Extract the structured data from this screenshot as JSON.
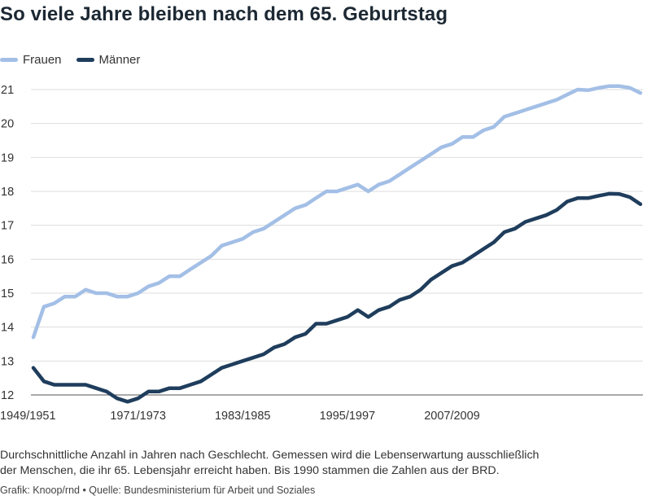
{
  "title": "So viele Jahre bleiben nach dem 65. Geburtstag",
  "legend": [
    {
      "label": "Frauen",
      "color": "#a3bfe6"
    },
    {
      "label": "Männer",
      "color": "#1f3d5c"
    }
  ],
  "description_line1": "Durchschnittliche Anzahl in Jahren nach Geschlecht. Gemessen wird die Lebenserwartung ausschließlich",
  "description_line2": "der Menschen, die ihr 65. Lebensjahr erreicht haben. Bis 1990 stammen die Zahlen aus der BRD.",
  "credit": "Grafik: Knoop/rnd • Quelle: Bundesministerium für Arbeit und Soziales",
  "chart_data": {
    "type": "line",
    "title": "So viele Jahre bleiben nach dem 65. Geburtstag",
    "xlabel": "",
    "ylabel": "",
    "ylim": [
      12,
      21
    ],
    "y_ticks": [
      12,
      13,
      14,
      15,
      16,
      17,
      18,
      19,
      20,
      21
    ],
    "x_tick_labels": [
      {
        "label": "1949/1951",
        "index": 0
      },
      {
        "label": "1971/1973",
        "index": 10
      },
      {
        "label": "1983/1985",
        "index": 20
      },
      {
        "label": "1995/1997",
        "index": 30
      },
      {
        "label": "2007/2009",
        "index": 40
      }
    ],
    "grid": "horizontal",
    "legend_position": "top-left",
    "series": [
      {
        "name": "Frauen",
        "color": "#a3bfe6",
        "values": [
          13.7,
          14.6,
          14.7,
          14.9,
          14.9,
          15.1,
          15.0,
          15.0,
          14.9,
          14.9,
          15.0,
          15.2,
          15.3,
          15.5,
          15.5,
          15.7,
          15.9,
          16.1,
          16.4,
          16.5,
          16.6,
          16.8,
          16.9,
          17.1,
          17.3,
          17.5,
          17.6,
          17.8,
          18.0,
          18.0,
          18.1,
          18.2,
          18.0,
          18.2,
          18.3,
          18.5,
          18.7,
          18.9,
          19.1,
          19.3,
          19.4,
          19.6,
          19.6,
          19.8,
          19.9,
          20.2,
          20.3,
          20.4,
          20.5,
          20.6,
          20.7,
          20.85,
          21.0,
          20.98,
          21.05,
          21.1,
          21.1,
          21.05,
          20.9
        ]
      },
      {
        "name": "Männer",
        "color": "#1f3d5c",
        "values": [
          12.8,
          12.4,
          12.3,
          12.3,
          12.3,
          12.3,
          12.2,
          12.1,
          11.9,
          11.8,
          11.9,
          12.1,
          12.1,
          12.2,
          12.2,
          12.3,
          12.4,
          12.6,
          12.8,
          12.9,
          13.0,
          13.1,
          13.2,
          13.4,
          13.5,
          13.7,
          13.8,
          14.1,
          14.1,
          14.2,
          14.3,
          14.5,
          14.3,
          14.5,
          14.6,
          14.8,
          14.9,
          15.1,
          15.4,
          15.6,
          15.8,
          15.9,
          16.1,
          16.3,
          16.5,
          16.8,
          16.9,
          17.1,
          17.2,
          17.3,
          17.45,
          17.7,
          17.8,
          17.8,
          17.87,
          17.93,
          17.92,
          17.83,
          17.62
        ]
      }
    ]
  }
}
